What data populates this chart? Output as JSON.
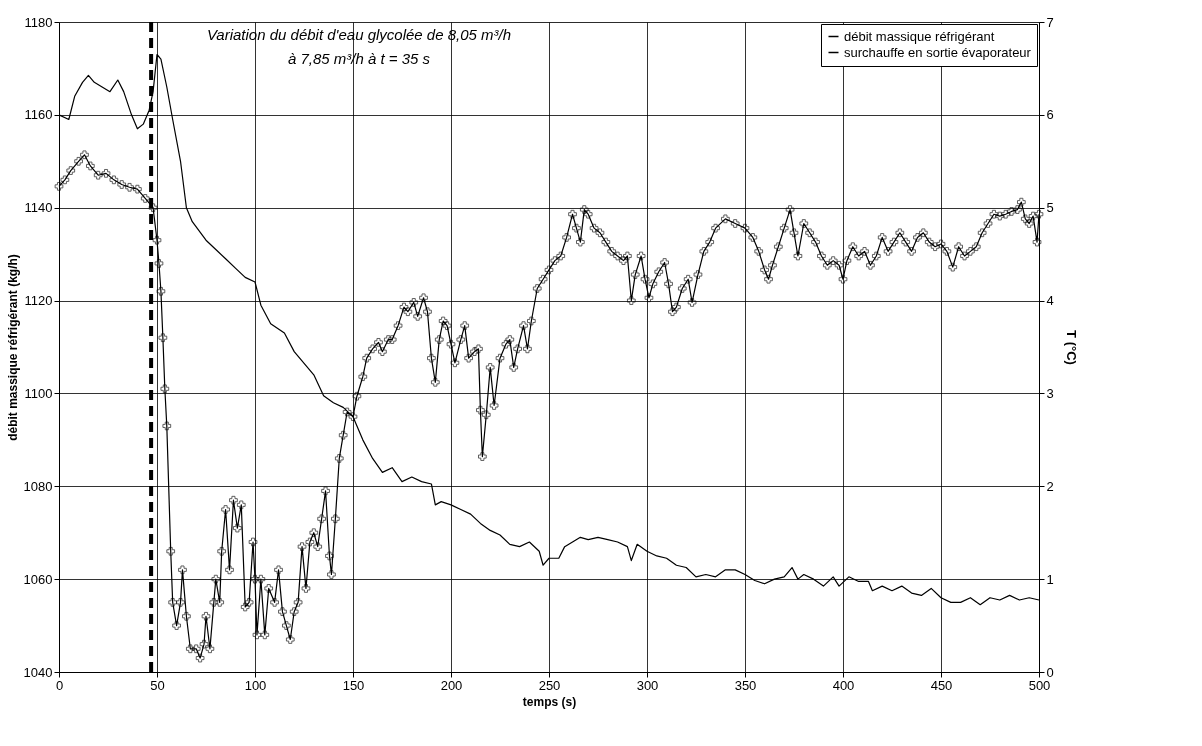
{
  "chart_data": {
    "type": "line",
    "xlabel": "temps (s)",
    "ylabel": "débit massique réfrigérant (kg/h)",
    "y2label": "T (°C)",
    "annotations": [
      "Variation du débit d'eau glycolée de 8,05 m³/h",
      "à 7,85 m³/h à t = 35 s"
    ],
    "xlim": [
      0,
      500
    ],
    "xticks": [
      0,
      50,
      100,
      150,
      200,
      250,
      300,
      350,
      400,
      450,
      500
    ],
    "ylim": [
      1040,
      1180
    ],
    "yticks": [
      1040,
      1060,
      1080,
      1100,
      1120,
      1140,
      1160,
      1180
    ],
    "y2lim": [
      0,
      7
    ],
    "y2ticks": [
      0,
      1,
      2,
      3,
      4,
      5,
      6,
      7
    ],
    "grid": true,
    "legend": "top right",
    "ref_lines": [
      {
        "axis": "x",
        "value": 47,
        "color": "#000000",
        "line_style": "dashed"
      }
    ],
    "series": [
      {
        "name": "débit massique réfrigérant",
        "color": "#000000",
        "marker": "none",
        "x": [
          0,
          5,
          8,
          12,
          15,
          18,
          22,
          26,
          30,
          33,
          37,
          40,
          43,
          46,
          48,
          50,
          52,
          55,
          58,
          62,
          65,
          68,
          75,
          80,
          85,
          90,
          95,
          100,
          103,
          108,
          115,
          120,
          130,
          135,
          140,
          145,
          150,
          155,
          160,
          165,
          170,
          175,
          180,
          185,
          190,
          192,
          195,
          200,
          205,
          210,
          215,
          220,
          225,
          230,
          235,
          240,
          245,
          247,
          250,
          255,
          258,
          262,
          266,
          270,
          275,
          280,
          285,
          290,
          292,
          295,
          300,
          305,
          310,
          315,
          320,
          325,
          330,
          335,
          340,
          345,
          350,
          355,
          360,
          365,
          370,
          374,
          377,
          380,
          385,
          390,
          395,
          398,
          403,
          408,
          413,
          415,
          420,
          425,
          430,
          435,
          440,
          445,
          450,
          455,
          460,
          465,
          470,
          475,
          480,
          485,
          490,
          495,
          500
        ],
        "values": [
          1160,
          1159,
          1164,
          1167,
          1168.5,
          1167,
          1166,
          1165,
          1167.5,
          1165,
          1160,
          1157,
          1158,
          1161,
          1165,
          1173,
          1172,
          1166,
          1159,
          1150,
          1140,
          1137,
          1133,
          1131,
          1129,
          1127,
          1125,
          1124,
          1119,
          1115,
          1113,
          1109,
          1104,
          1099.5,
          1098,
          1097,
          1095,
          1090,
          1086,
          1083,
          1084,
          1081,
          1082,
          1081,
          1080.5,
          1076,
          1076.7,
          1076,
          1075,
          1074,
          1072,
          1070.5,
          1069.5,
          1067.5,
          1067,
          1068,
          1066,
          1063,
          1064.5,
          1064.5,
          1067,
          1068,
          1069,
          1068.5,
          1069,
          1068.5,
          1068,
          1067,
          1064,
          1067.5,
          1066,
          1065,
          1064.5,
          1063,
          1062.5,
          1060.5,
          1061,
          1060.5,
          1062,
          1062,
          1061,
          1059.7,
          1059,
          1060,
          1060.5,
          1062.5,
          1060,
          1061,
          1060,
          1058.5,
          1060.5,
          1058.5,
          1060.5,
          1059.5,
          1059.5,
          1057.5,
          1058.5,
          1057.5,
          1058.5,
          1057,
          1056.5,
          1058,
          1056,
          1055,
          1055,
          1056,
          1054.5,
          1056,
          1055.5,
          1056.5,
          1055.5,
          1056,
          1055.5
        ]
      },
      {
        "name": "surchauffe en sortie évaporateur",
        "color": "#000000",
        "axis": "y2",
        "marker": "cross",
        "x": [
          0,
          3,
          6,
          10,
          13,
          16,
          20,
          24,
          28,
          32,
          36,
          40,
          44,
          48,
          50,
          51,
          52,
          53,
          54,
          55,
          57,
          58,
          60,
          62,
          63,
          65,
          67,
          70,
          72,
          74,
          75,
          77,
          79,
          80,
          82,
          83,
          85,
          87,
          89,
          91,
          93,
          95,
          97,
          99,
          100,
          101,
          103,
          105,
          107,
          110,
          112,
          114,
          116,
          118,
          120,
          122,
          124,
          126,
          128,
          130,
          132,
          134,
          136,
          138,
          139,
          141,
          143,
          145,
          147,
          150,
          152,
          155,
          157,
          160,
          163,
          165,
          168,
          170,
          173,
          176,
          178,
          181,
          183,
          186,
          188,
          190,
          192,
          194,
          196,
          198,
          200,
          202,
          205,
          207,
          209,
          212,
          214,
          215,
          216,
          218,
          220,
          222,
          225,
          228,
          230,
          232,
          234,
          237,
          239,
          241,
          244,
          247,
          250,
          253,
          256,
          259,
          262,
          264,
          266,
          268,
          270,
          273,
          276,
          279,
          282,
          285,
          288,
          290,
          292,
          294,
          297,
          299,
          301,
          303,
          306,
          309,
          311,
          313,
          315,
          318,
          321,
          323,
          326,
          329,
          332,
          335,
          340,
          345,
          350,
          354,
          357,
          360,
          362,
          364,
          367,
          370,
          373,
          375,
          377,
          380,
          383,
          386,
          389,
          392,
          395,
          398,
          400,
          402,
          405,
          408,
          411,
          414,
          417,
          420,
          423,
          426,
          429,
          432,
          435,
          438,
          441,
          444,
          447,
          450,
          453,
          456,
          459,
          462,
          465,
          468,
          471,
          474,
          477,
          480,
          483,
          486,
          489,
          491,
          493,
          495,
          497,
          499,
          500
        ],
        "values": [
          5.23,
          5.3,
          5.4,
          5.5,
          5.57,
          5.45,
          5.35,
          5.37,
          5.3,
          5.25,
          5.22,
          5.2,
          5.1,
          5.0,
          4.65,
          4.4,
          4.1,
          3.6,
          3.05,
          2.65,
          1.3,
          0.75,
          0.5,
          0.75,
          1.1,
          0.6,
          0.25,
          0.25,
          0.15,
          0.3,
          0.6,
          0.25,
          0.75,
          1.0,
          0.75,
          1.3,
          1.75,
          1.1,
          1.85,
          1.55,
          1.8,
          0.7,
          0.75,
          1.4,
          1.0,
          0.4,
          1.0,
          0.4,
          0.9,
          0.75,
          1.1,
          0.65,
          0.5,
          0.35,
          0.65,
          0.75,
          1.35,
          0.9,
          1.4,
          1.5,
          1.35,
          1.65,
          1.95,
          1.25,
          1.05,
          1.65,
          2.3,
          2.55,
          2.8,
          2.75,
          2.97,
          3.18,
          3.38,
          3.48,
          3.55,
          3.45,
          3.58,
          3.58,
          3.73,
          3.93,
          3.88,
          3.98,
          3.83,
          4.03,
          3.88,
          3.38,
          3.12,
          3.58,
          3.78,
          3.73,
          3.53,
          3.33,
          3.58,
          3.73,
          3.38,
          3.45,
          3.48,
          2.82,
          2.32,
          2.77,
          3.28,
          2.87,
          3.38,
          3.53,
          3.58,
          3.28,
          3.48,
          3.73,
          3.48,
          3.78,
          4.13,
          4.23,
          4.33,
          4.43,
          4.48,
          4.68,
          4.93,
          4.78,
          4.63,
          4.98,
          4.93,
          4.78,
          4.73,
          4.63,
          4.53,
          4.48,
          4.43,
          4.48,
          4.0,
          4.28,
          4.48,
          4.23,
          4.03,
          4.18,
          4.31,
          4.41,
          4.18,
          3.88,
          3.93,
          4.13,
          4.23,
          3.98,
          4.28,
          4.53,
          4.63,
          4.78,
          4.88,
          4.83,
          4.78,
          4.68,
          4.53,
          4.33,
          4.23,
          4.38,
          4.58,
          4.78,
          4.98,
          4.73,
          4.48,
          4.83,
          4.73,
          4.63,
          4.48,
          4.38,
          4.43,
          4.38,
          4.23,
          4.43,
          4.58,
          4.48,
          4.53,
          4.38,
          4.48,
          4.68,
          4.53,
          4.63,
          4.73,
          4.63,
          4.53,
          4.68,
          4.73,
          4.63,
          4.58,
          4.61,
          4.53,
          4.36,
          4.58,
          4.48,
          4.53,
          4.58,
          4.73,
          4.83,
          4.93,
          4.91,
          4.93,
          4.96,
          4.98,
          5.06,
          4.88,
          4.83,
          4.91,
          4.63,
          4.93
        ]
      }
    ]
  }
}
